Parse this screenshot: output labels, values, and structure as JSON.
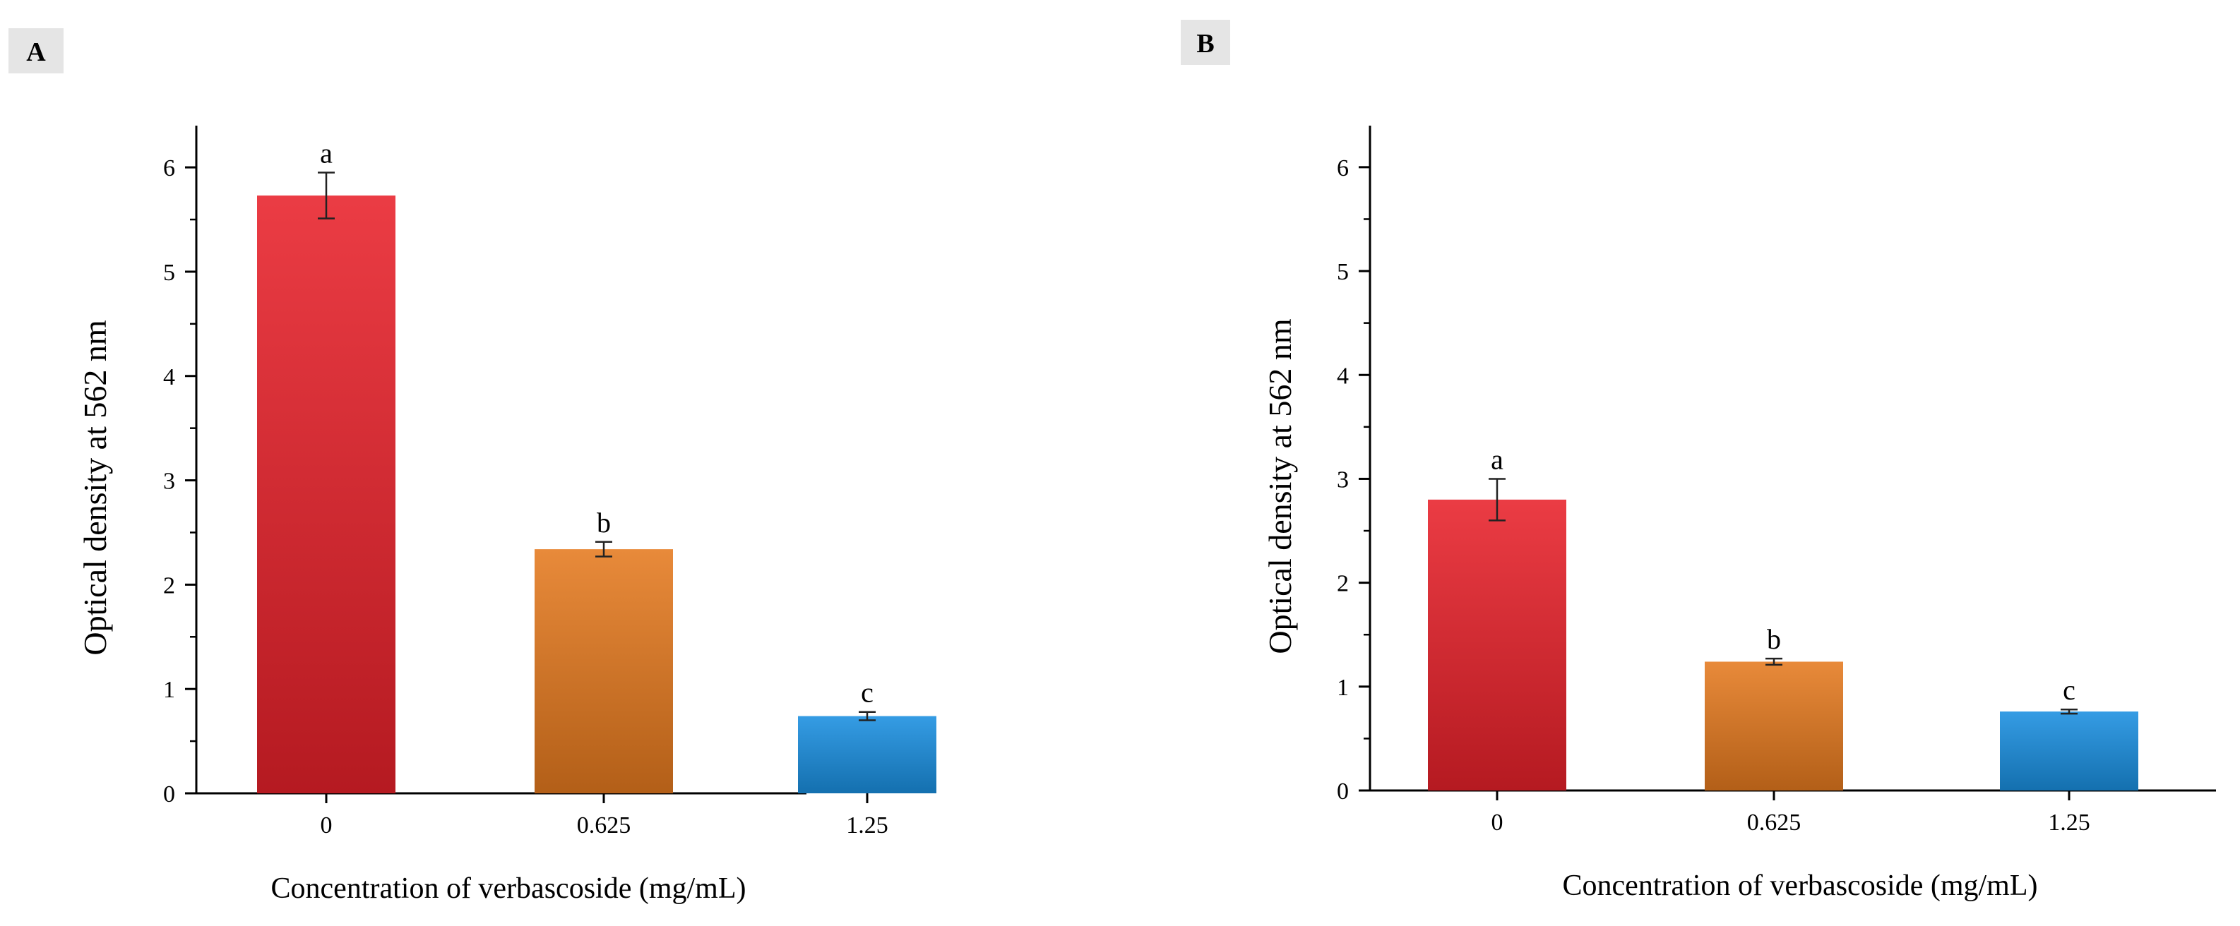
{
  "chart_data": [
    {
      "panel": "A",
      "type": "bar",
      "categories": [
        "0",
        "0.625",
        "1.25"
      ],
      "values": [
        5.73,
        2.34,
        0.74
      ],
      "errors": [
        0.22,
        0.07,
        0.04
      ],
      "significance": [
        "a",
        "b",
        "c"
      ],
      "colors": [
        "#e8212a",
        "#e57a1f",
        "#1a8fe0"
      ],
      "xlabel": "Concentration of verbascoside (mg/mL)",
      "ylabel": "Optical density at 562 nm",
      "ylim": [
        0,
        6.4
      ],
      "yticks": [
        "0",
        "1",
        "2",
        "3",
        "4",
        "5",
        "6"
      ],
      "grid": false
    },
    {
      "panel": "B",
      "type": "bar",
      "categories": [
        "0",
        "0.625",
        "1.25"
      ],
      "values": [
        2.8,
        1.24,
        0.76
      ],
      "errors": [
        0.2,
        0.03,
        0.02
      ],
      "significance": [
        "a",
        "b",
        "c"
      ],
      "colors": [
        "#e8212a",
        "#e57a1f",
        "#1a8fe0"
      ],
      "xlabel": "Concentration of verbascoside (mg/mL)",
      "ylabel": "Optical density at 562 nm",
      "ylim": [
        0,
        6.4
      ],
      "yticks": [
        "0",
        "1",
        "2",
        "3",
        "4",
        "5",
        "6"
      ],
      "grid": false
    }
  ]
}
